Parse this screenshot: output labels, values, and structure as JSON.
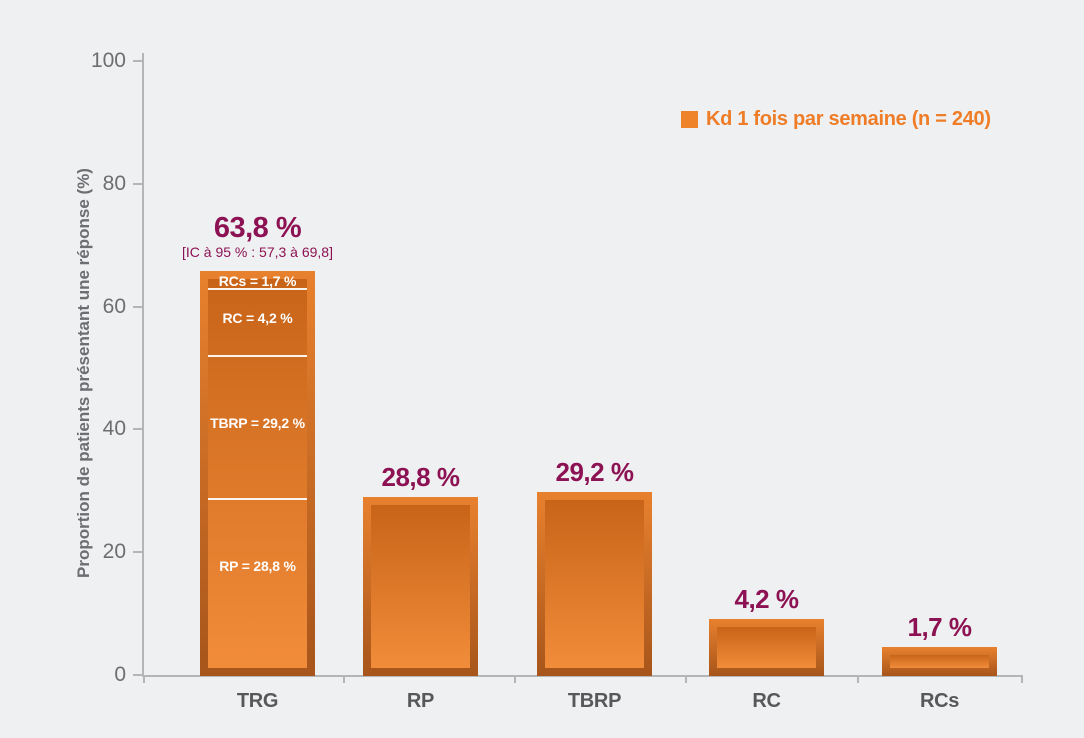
{
  "colors": {
    "background": "#eff0f2",
    "axis_gray": "#b4b5b7",
    "tick_text_gray": "#6d6e70",
    "category_text_gray": "#57585a",
    "plum_accent": "#8d1253",
    "legend_orange": "#ef7d28",
    "bar_frame_top": "#e8812e",
    "bar_frame_bottom": "#a7551b",
    "bar_inner_top": "#c86418",
    "bar_inner_bottom": "#f18c3a",
    "segment_text": "#ffffff"
  },
  "chart_data": {
    "type": "bar",
    "title": "",
    "xlabel": "",
    "ylabel": "Proportion de patients présentant une réponse (%)",
    "ylim": [
      0,
      100
    ],
    "yticks": [
      0,
      20,
      40,
      60,
      80,
      100
    ],
    "ytick_labels": [
      "100",
      "80",
      "60",
      "40",
      "20",
      "0"
    ],
    "grid": false,
    "legend": {
      "label": "Kd 1 fois par semaine (n = 240)",
      "color": "#ef8329",
      "position": "top-right"
    },
    "categories": [
      "TRG",
      "RP",
      "TBRP",
      "RC",
      "RCs"
    ],
    "values": [
      63.8,
      28.8,
      29.2,
      4.2,
      1.7
    ],
    "bars": [
      {
        "category": "TRG",
        "value": 63.8,
        "value_label": "63,8 %",
        "ci_label": "[IC à 95 % : 57,3 à 69,8]",
        "segments": [
          {
            "label": "RCs = 1,7 %",
            "name": "RCs",
            "value": 1.7
          },
          {
            "label": "RC = 4,2 %",
            "name": "RC",
            "value": 4.2
          },
          {
            "label": "TBRP = 29,2 %",
            "name": "TBRP",
            "value": 29.2
          },
          {
            "label": "RP = 28,8 %",
            "name": "RP",
            "value": 28.8
          }
        ]
      },
      {
        "category": "RP",
        "value": 28.8,
        "value_label": "28,8 %"
      },
      {
        "category": "TBRP",
        "value": 29.2,
        "value_label": "29,2 %"
      },
      {
        "category": "RC",
        "value": 4.2,
        "value_label": "4,2 %"
      },
      {
        "category": "RCs",
        "value": 1.7,
        "value_label": "1,7 %"
      }
    ]
  }
}
